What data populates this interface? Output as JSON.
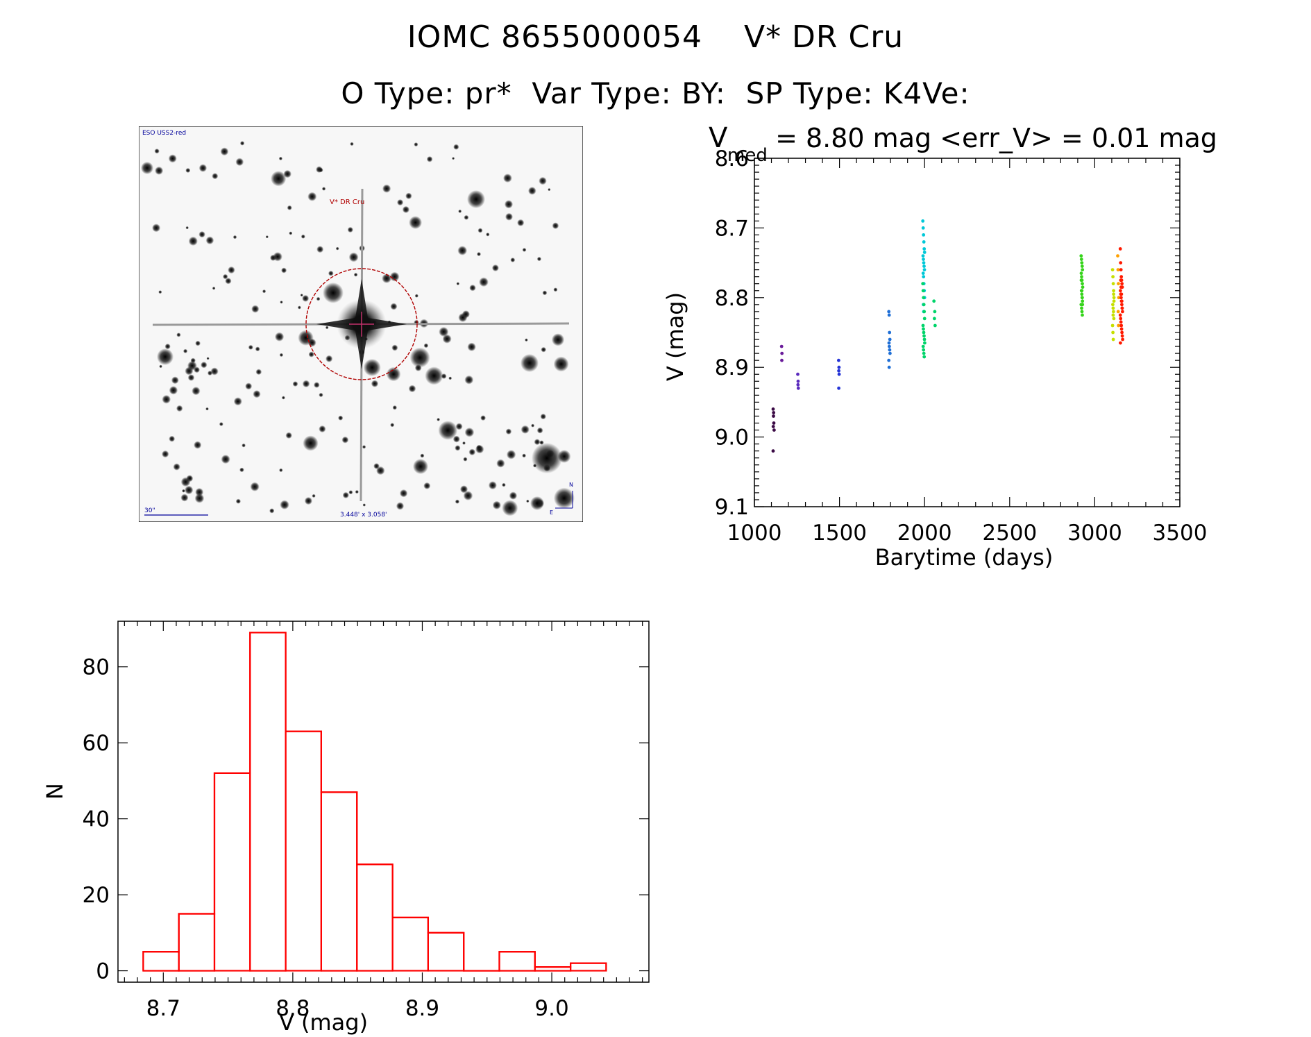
{
  "header": {
    "title_line1": "IOMC 8655000054    V* DR Cru",
    "title_line2": "O Type: pr*  Var Type: BY:  SP Type: K4Ve:"
  },
  "sky_image": {
    "survey_label": "ESO USS2-red",
    "target_label": "V* DR Cru",
    "scale_label": "30\"",
    "fov_label": "3.448' x 3.058'",
    "north_label": "N",
    "east_label": "E",
    "colors": {
      "target": "#b00000",
      "annotation": "#00009a"
    }
  },
  "chart_data": [
    {
      "type": "scatter",
      "title_prefix": "V",
      "title_subscript": "med",
      "title_rest": " = 8.80 mag <err_V> = 0.01 mag",
      "xlabel": "Barytime (days)",
      "ylabel": "V (mag)",
      "xlim": [
        1000,
        3500
      ],
      "ylim": [
        9.1,
        8.6
      ],
      "y_inverted": true,
      "xticks": [
        1000,
        1500,
        2000,
        2500,
        3000,
        3500
      ],
      "xtick_labels": [
        "1000",
        "1500",
        "2000",
        "2500",
        "3000",
        "3500"
      ],
      "yticks": [
        8.6,
        8.7,
        8.8,
        8.9,
        9.0,
        9.1
      ],
      "ytick_labels": [
        "8.6",
        "8.7",
        "8.8",
        "8.9",
        "9.0",
        "9.1"
      ],
      "color_note": "points colored by time (purple to red)",
      "series": [
        {
          "name": "epoch-1",
          "color": "#3b0a45",
          "x": [
            1110,
            1112,
            1114,
            1116,
            1110,
            1113,
            1111
          ],
          "y": [
            8.96,
            8.97,
            8.98,
            8.99,
            9.02,
            8.965,
            8.985
          ]
        },
        {
          "name": "epoch-2",
          "color": "#6a1b9a",
          "x": [
            1160,
            1162,
            1161
          ],
          "y": [
            8.87,
            8.88,
            8.89
          ]
        },
        {
          "name": "epoch-3",
          "color": "#5b2bbd",
          "x": [
            1255,
            1257,
            1256,
            1258
          ],
          "y": [
            8.91,
            8.92,
            8.925,
            8.93
          ]
        },
        {
          "name": "epoch-4",
          "color": "#2433d6",
          "x": [
            1495,
            1497,
            1496,
            1498,
            1496
          ],
          "y": [
            8.89,
            8.9,
            8.905,
            8.91,
            8.93
          ]
        },
        {
          "name": "epoch-5",
          "color": "#1f6fd6",
          "x": [
            1790,
            1792,
            1794,
            1796,
            1791,
            1793,
            1795,
            1797,
            1790,
            1792
          ],
          "y": [
            8.82,
            8.825,
            8.85,
            8.86,
            8.865,
            8.87,
            8.875,
            8.88,
            8.89,
            8.9
          ]
        },
        {
          "name": "epoch-6",
          "color": "#00c8d8",
          "x": [
            1990,
            1992,
            1994,
            1996,
            1998,
            2000,
            1991,
            1993,
            1995,
            1997,
            1999,
            1992,
            1994,
            1996,
            1998,
            2000,
            1993,
            1995
          ],
          "y": [
            8.69,
            8.7,
            8.71,
            8.72,
            8.73,
            8.735,
            8.74,
            8.745,
            8.75,
            8.755,
            8.76,
            8.765,
            8.77,
            8.78,
            8.79,
            8.8,
            8.81,
            8.82
          ]
        },
        {
          "name": "epoch-7",
          "color": "#00d46a",
          "x": [
            1990,
            1992,
            1994,
            1996,
            1998,
            2000,
            1991,
            1993,
            1995,
            1997,
            1999,
            2001,
            1992,
            1994,
            1996,
            1998,
            2055,
            2060,
            2058,
            2062
          ],
          "y": [
            8.78,
            8.79,
            8.8,
            8.81,
            8.82,
            8.83,
            8.84,
            8.845,
            8.85,
            8.855,
            8.86,
            8.865,
            8.87,
            8.875,
            8.88,
            8.885,
            8.805,
            8.82,
            8.83,
            8.84
          ]
        },
        {
          "name": "epoch-8",
          "color": "#35d41a",
          "x": [
            2920,
            2922,
            2924,
            2926,
            2928,
            2921,
            2923,
            2925,
            2927,
            2929,
            2922,
            2924,
            2926,
            2928,
            2920,
            2923,
            2925,
            2927,
            2921,
            2924,
            2926,
            2928
          ],
          "y": [
            8.74,
            8.745,
            8.75,
            8.755,
            8.76,
            8.765,
            8.77,
            8.775,
            8.78,
            8.785,
            8.79,
            8.795,
            8.8,
            8.805,
            8.81,
            8.815,
            8.82,
            8.825,
            8.775,
            8.79,
            8.8,
            8.81
          ]
        },
        {
          "name": "epoch-9",
          "color": "#c6e000",
          "x": [
            3105,
            3107,
            3109,
            3111,
            3113,
            3106,
            3108,
            3110,
            3112,
            3105,
            3107,
            3109,
            3111,
            3113,
            3108
          ],
          "y": [
            8.76,
            8.77,
            8.78,
            8.79,
            8.8,
            8.81,
            8.815,
            8.82,
            8.83,
            8.84,
            8.85,
            8.86,
            8.795,
            8.805,
            8.825
          ]
        },
        {
          "name": "epoch-10",
          "color": "#ffa000",
          "x": [
            3135,
            3137,
            3139,
            3141,
            3138,
            3140
          ],
          "y": [
            8.74,
            8.76,
            8.78,
            8.8,
            8.82,
            8.84
          ]
        },
        {
          "name": "epoch-11",
          "color": "#ff1a00",
          "x": [
            3150,
            3152,
            3154,
            3156,
            3158,
            3160,
            3162,
            3151,
            3153,
            3155,
            3157,
            3159,
            3161,
            3163,
            3150,
            3152,
            3154,
            3156,
            3158,
            3160,
            3162,
            3164,
            3151,
            3153,
            3155,
            3157,
            3159,
            3161
          ],
          "y": [
            8.73,
            8.75,
            8.76,
            8.77,
            8.775,
            8.78,
            8.785,
            8.79,
            8.795,
            8.8,
            8.805,
            8.81,
            8.815,
            8.82,
            8.825,
            8.83,
            8.835,
            8.84,
            8.845,
            8.85,
            8.855,
            8.86,
            8.865,
            8.775,
            8.785,
            8.795,
            8.805,
            8.815
          ]
        }
      ]
    },
    {
      "type": "bar",
      "subtype": "histogram",
      "title": "",
      "xlabel": "V (mag)",
      "ylabel": "N",
      "xlim": [
        8.665,
        9.075
      ],
      "ylim": [
        -3,
        92
      ],
      "xticks": [
        8.7,
        8.8,
        8.9,
        9.0
      ],
      "xtick_labels": [
        "8.7",
        "8.8",
        "8.9",
        "9.0"
      ],
      "yticks": [
        0,
        20,
        40,
        60,
        80
      ],
      "ytick_labels": [
        "0",
        "20",
        "40",
        "60",
        "80"
      ],
      "bin_edges": [
        8.6845,
        8.712,
        8.7395,
        8.767,
        8.7945,
        8.822,
        8.8495,
        8.877,
        8.9045,
        8.932,
        8.9595,
        8.987,
        9.0145,
        9.042
      ],
      "values": [
        5,
        15,
        52,
        89,
        63,
        47,
        28,
        14,
        10,
        0,
        5,
        1,
        2
      ],
      "color": "#ff0000"
    }
  ]
}
